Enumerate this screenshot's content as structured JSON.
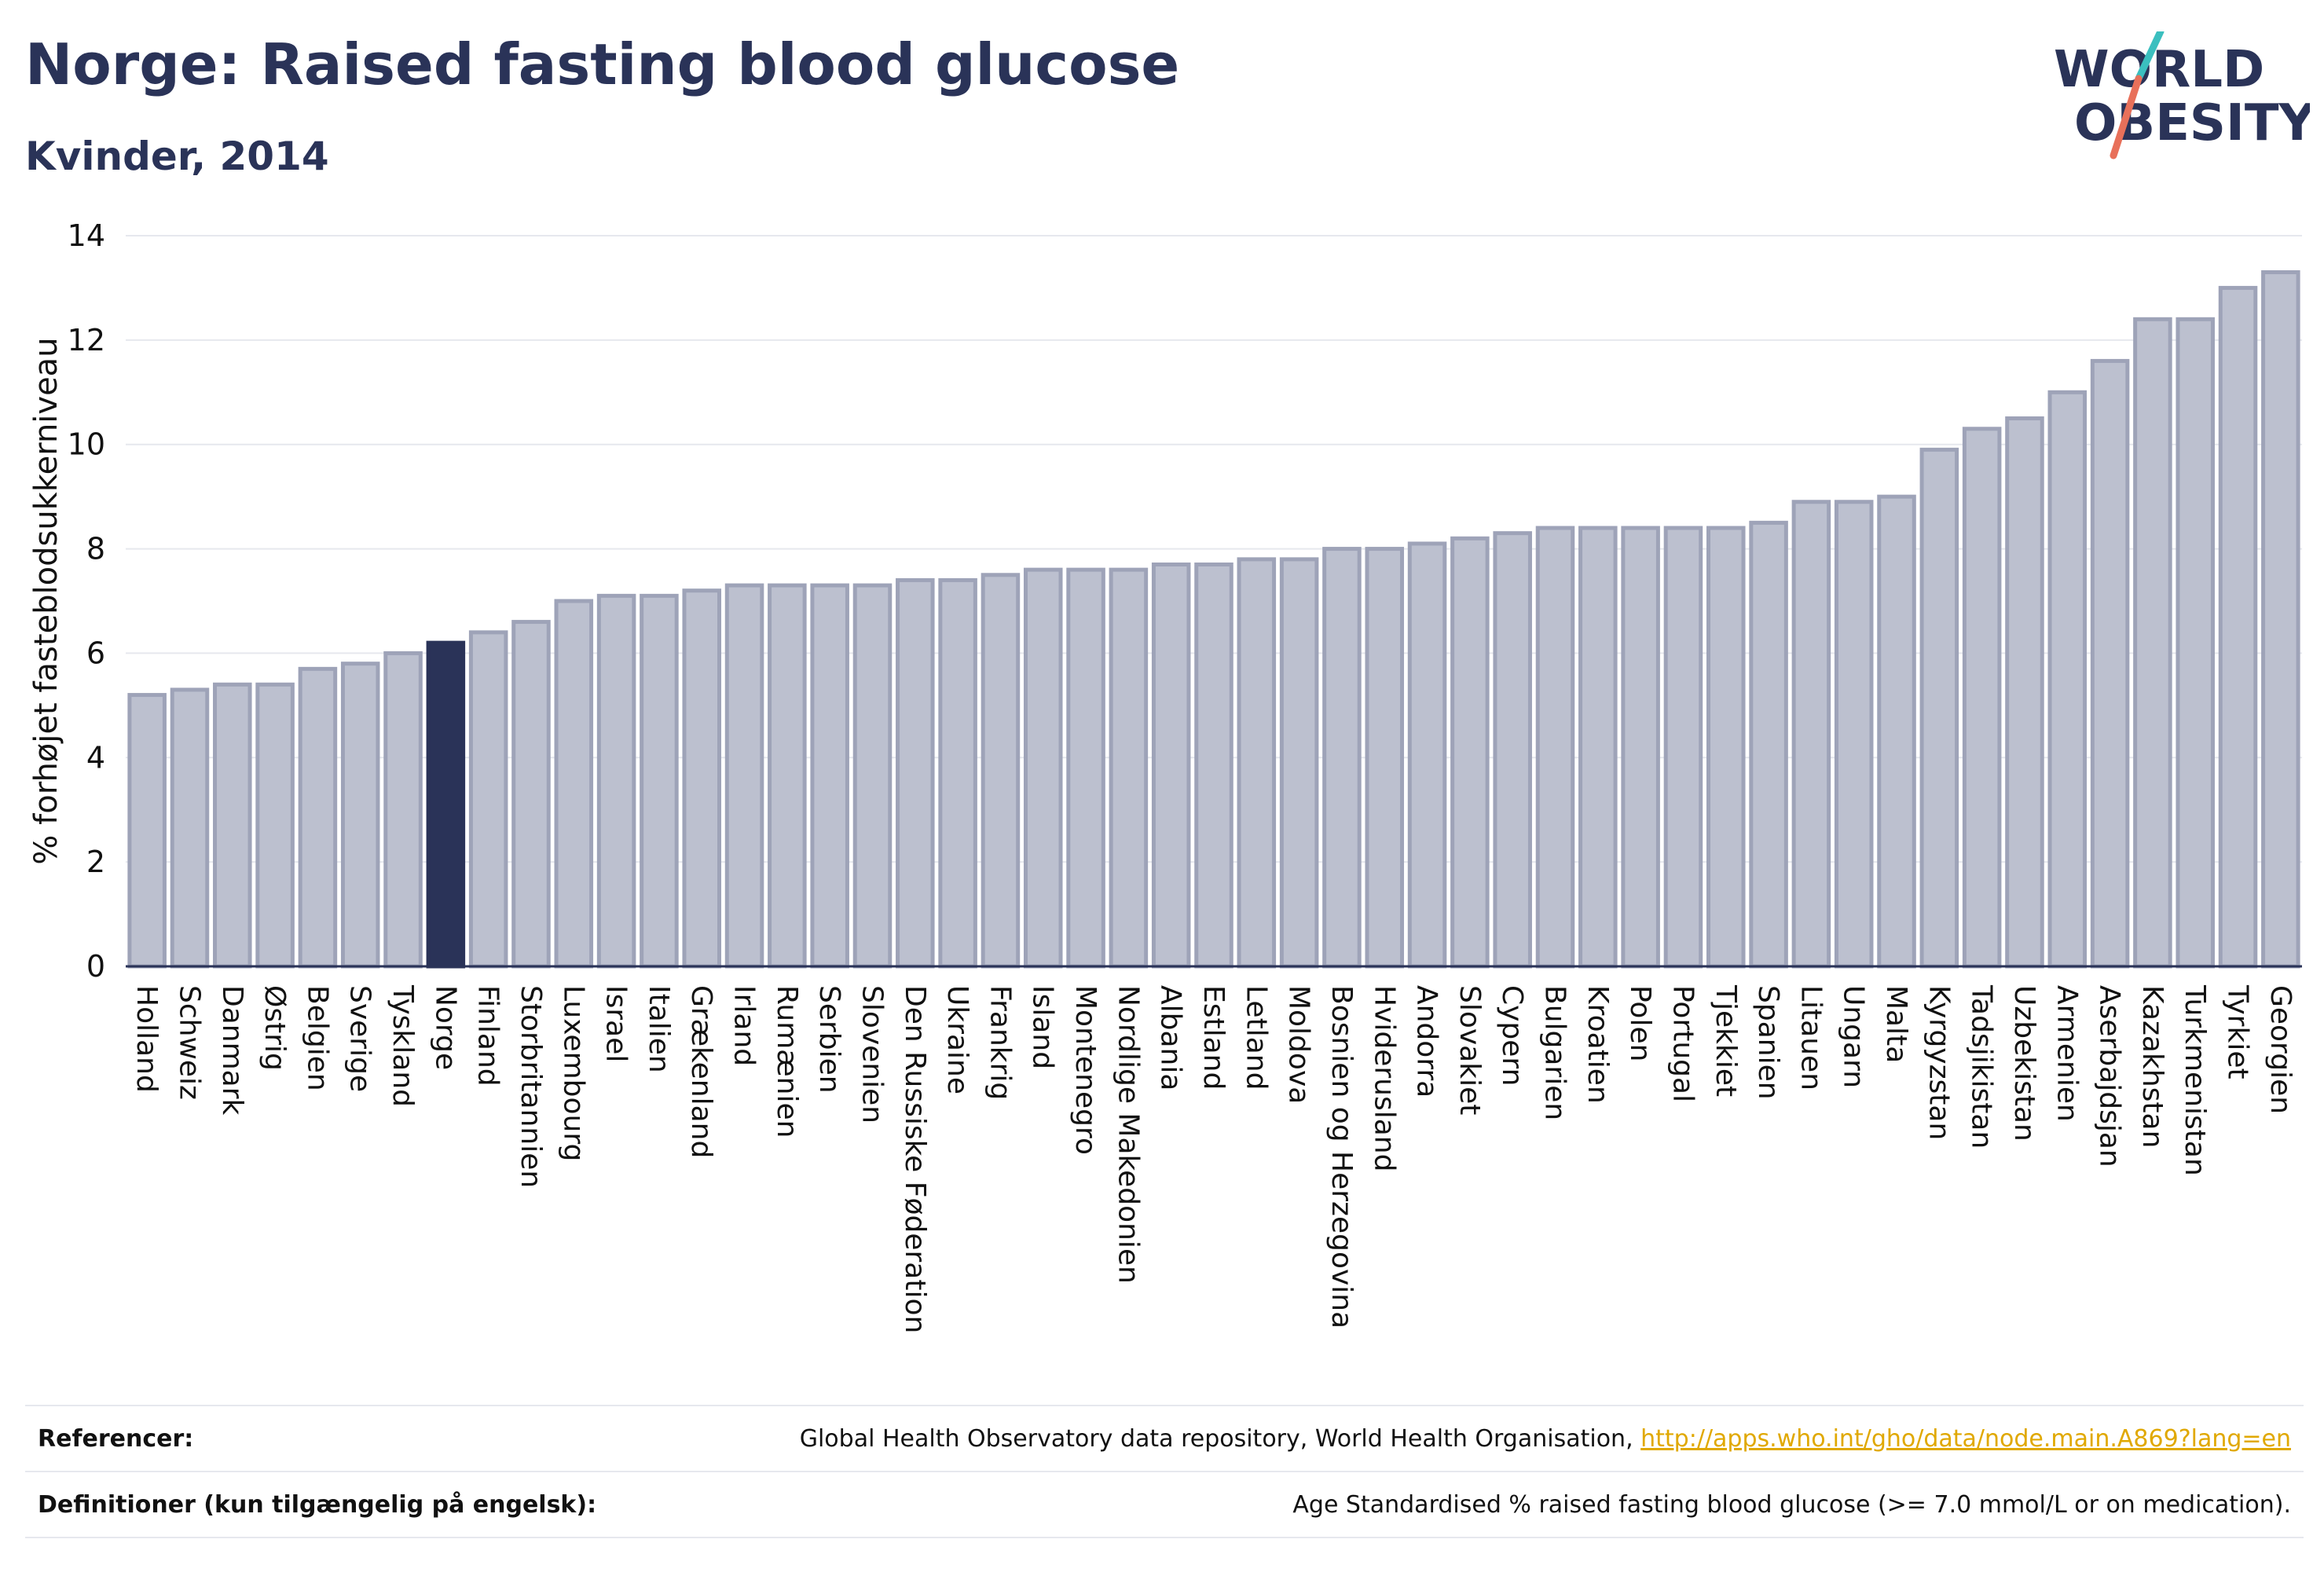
{
  "header": {
    "title": "Norge: Raised fasting blood glucose",
    "subtitle": "Kvinder, 2014"
  },
  "logo": {
    "line1": "WORLD",
    "line2": "OBESITY",
    "colors": {
      "text": "#2a3358",
      "slash_top": "#3bbfbf",
      "slash_bottom": "#e8705a"
    }
  },
  "chart_data": {
    "type": "bar",
    "title": "",
    "xlabel": "",
    "ylabel": "% forhøjet fasteblodsukkerniveau",
    "ylim": [
      0,
      14
    ],
    "yticks": [
      0,
      2,
      4,
      6,
      8,
      10,
      12,
      14
    ],
    "grid": true,
    "highlight_category": "Norge",
    "colors": {
      "bar": "#bcc0cf",
      "bar_border": "#9ea3b8",
      "highlight": "#2a3358",
      "grid": "#e6e8ee",
      "axis": "#2a3358"
    },
    "categories": [
      "Holland",
      "Schweiz",
      "Danmark",
      "Østrig",
      "Belgien",
      "Sverige",
      "Tyskland",
      "Norge",
      "Finland",
      "Storbritannien",
      "Luxembourg",
      "Israel",
      "Italien",
      "Grækenland",
      "Irland",
      "Rumænien",
      "Serbien",
      "Slovenien",
      "Den Russiske Føderation",
      "Ukraine",
      "Frankrig",
      "Island",
      "Montenegro",
      "Nordlige Makedonien",
      "Albania",
      "Estland",
      "Letland",
      "Moldova",
      "Bosnien og Herzegovina",
      "Hviderusland",
      "Andorra",
      "Slovakiet",
      "Cypern",
      "Bulgarien",
      "Kroatien",
      "Polen",
      "Portugal",
      "Tjekkiet",
      "Spanien",
      "Litauen",
      "Ungarn",
      "Malta",
      "Kyrgyzstan",
      "Tadsjikistan",
      "Uzbekistan",
      "Armenien",
      "Aserbajdsjan",
      "Kazakhstan",
      "Turkmenistan",
      "Tyrkiet",
      "Georgien"
    ],
    "values": [
      5.2,
      5.3,
      5.4,
      5.4,
      5.7,
      5.8,
      6.0,
      6.2,
      6.4,
      6.6,
      7.0,
      7.1,
      7.1,
      7.2,
      7.3,
      7.3,
      7.3,
      7.3,
      7.4,
      7.4,
      7.5,
      7.6,
      7.6,
      7.6,
      7.7,
      7.7,
      7.8,
      7.8,
      8.0,
      8.0,
      8.1,
      8.2,
      8.3,
      8.4,
      8.4,
      8.4,
      8.4,
      8.4,
      8.5,
      8.9,
      8.9,
      9.0,
      9.9,
      10.3,
      10.5,
      11.0,
      11.6,
      12.4,
      12.4,
      13.0,
      13.3
    ]
  },
  "footer": {
    "references_label": "Referencer:",
    "references_text": "Global Health Observatory data repository, World Health Organisation, ",
    "references_link": "http://apps.who.int/gho/data/node.main.A869?lang=en",
    "definitions_label": "Definitioner (kun tilgængelig på engelsk):",
    "definitions_text": "Age Standardised % raised fasting blood glucose (>= 7.0 mmol/L or on medication)."
  }
}
